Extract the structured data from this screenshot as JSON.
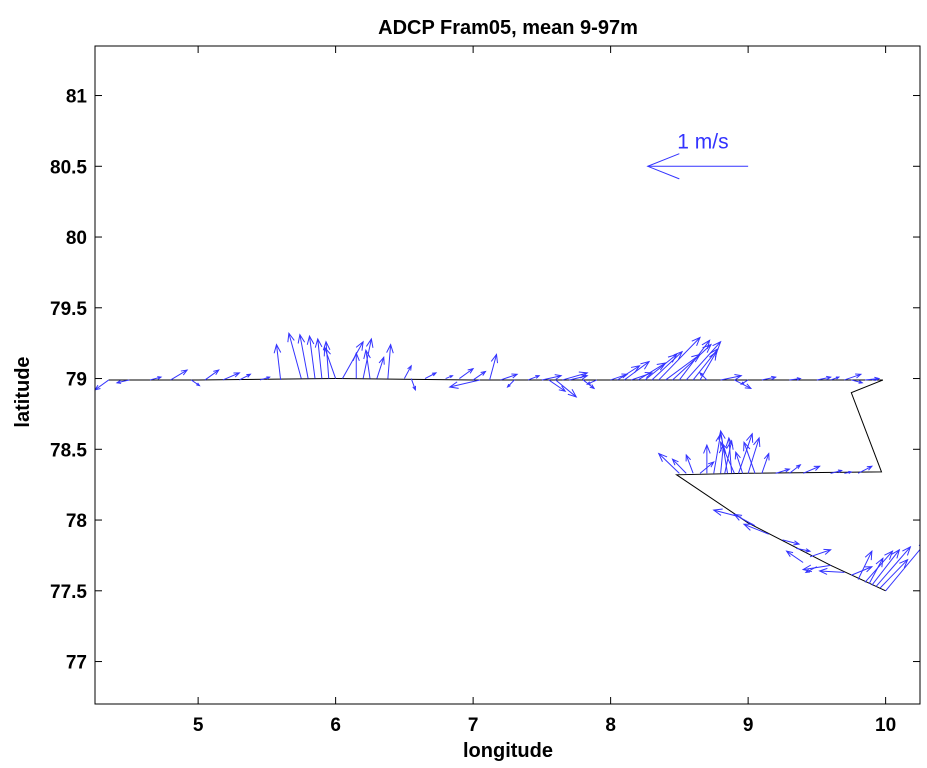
{
  "chart_data": {
    "type": "scatter",
    "title": "ADCP Fram05, mean 9-97m",
    "xlabel": "longitude",
    "ylabel": "latitude",
    "xlim": [
      4.25,
      10.25
    ],
    "ylim": [
      76.7,
      81.35
    ],
    "xticks": [
      5,
      6,
      7,
      8,
      9,
      10
    ],
    "yticks": [
      77,
      77.5,
      78,
      78.5,
      79,
      79.5,
      80,
      80.5,
      81
    ],
    "ytick_labels": [
      "77",
      "77.5",
      "78",
      "78.5",
      "79",
      "79.5",
      "80",
      "80.5",
      "81"
    ],
    "grid": false,
    "colors": {
      "vectors": "#3333ff",
      "track": "#000000",
      "axes": "#000000"
    },
    "scale_arrow": {
      "label": "1 m/s",
      "start": [
        9.0,
        80.5
      ],
      "end": [
        8.27,
        80.5
      ]
    },
    "ship_track": [
      [
        4.35,
        78.99
      ],
      [
        5.0,
        78.99
      ],
      [
        6.0,
        79.0
      ],
      [
        7.0,
        78.99
      ],
      [
        8.0,
        78.99
      ],
      [
        9.0,
        78.99
      ],
      [
        9.98,
        78.99
      ],
      [
        9.75,
        78.9
      ],
      [
        9.97,
        78.34
      ],
      [
        9.0,
        78.33
      ],
      [
        8.48,
        78.32
      ],
      [
        9.0,
        77.98
      ],
      [
        9.6,
        77.68
      ],
      [
        10.0,
        77.5
      ]
    ],
    "vectors": [
      {
        "lon": 4.35,
        "lat": 78.99,
        "dx": -0.1,
        "dy": -0.07
      },
      {
        "lon": 4.5,
        "lat": 78.99,
        "dx": -0.09,
        "dy": -0.02
      },
      {
        "lon": 4.65,
        "lat": 78.99,
        "dx": 0.08,
        "dy": 0.02
      },
      {
        "lon": 4.8,
        "lat": 78.99,
        "dx": 0.12,
        "dy": 0.07
      },
      {
        "lon": 4.95,
        "lat": 78.99,
        "dx": 0.06,
        "dy": -0.04
      },
      {
        "lon": 5.05,
        "lat": 78.99,
        "dx": 0.1,
        "dy": 0.07
      },
      {
        "lon": 5.18,
        "lat": 78.99,
        "dx": 0.12,
        "dy": 0.05
      },
      {
        "lon": 5.3,
        "lat": 78.99,
        "dx": 0.08,
        "dy": 0.04
      },
      {
        "lon": 5.45,
        "lat": 78.99,
        "dx": 0.07,
        "dy": 0.02
      },
      {
        "lon": 5.6,
        "lat": 78.99,
        "dx": -0.03,
        "dy": 0.25
      },
      {
        "lon": 5.75,
        "lat": 79.0,
        "dx": -0.09,
        "dy": 0.32
      },
      {
        "lon": 5.8,
        "lat": 79.0,
        "dx": -0.06,
        "dy": 0.31
      },
      {
        "lon": 5.85,
        "lat": 79.0,
        "dx": -0.04,
        "dy": 0.3
      },
      {
        "lon": 5.9,
        "lat": 79.0,
        "dx": -0.03,
        "dy": 0.28
      },
      {
        "lon": 5.95,
        "lat": 79.0,
        "dx": -0.02,
        "dy": 0.26
      },
      {
        "lon": 6.0,
        "lat": 79.0,
        "dx": -0.08,
        "dy": 0.22
      },
      {
        "lon": 6.05,
        "lat": 79.0,
        "dx": 0.15,
        "dy": 0.26
      },
      {
        "lon": 6.15,
        "lat": 79.0,
        "dx": 0.0,
        "dy": 0.18
      },
      {
        "lon": 6.2,
        "lat": 79.0,
        "dx": 0.06,
        "dy": 0.28
      },
      {
        "lon": 6.25,
        "lat": 79.0,
        "dx": -0.03,
        "dy": 0.2
      },
      {
        "lon": 6.3,
        "lat": 79.0,
        "dx": 0.05,
        "dy": 0.15
      },
      {
        "lon": 6.38,
        "lat": 79.0,
        "dx": 0.02,
        "dy": 0.24
      },
      {
        "lon": 6.5,
        "lat": 79.0,
        "dx": 0.05,
        "dy": 0.09
      },
      {
        "lon": 6.55,
        "lat": 79.0,
        "dx": 0.03,
        "dy": -0.08
      },
      {
        "lon": 6.65,
        "lat": 79.0,
        "dx": 0.08,
        "dy": 0.04
      },
      {
        "lon": 6.8,
        "lat": 79.0,
        "dx": 0.05,
        "dy": 0.02
      },
      {
        "lon": 6.9,
        "lat": 79.0,
        "dx": 0.1,
        "dy": 0.07
      },
      {
        "lon": 7.0,
        "lat": 78.99,
        "dx": 0.09,
        "dy": 0.06
      },
      {
        "lon": 7.05,
        "lat": 78.99,
        "dx": -0.22,
        "dy": -0.05
      },
      {
        "lon": 7.12,
        "lat": 78.99,
        "dx": 0.05,
        "dy": 0.18
      },
      {
        "lon": 7.2,
        "lat": 78.99,
        "dx": 0.12,
        "dy": 0.04
      },
      {
        "lon": 7.3,
        "lat": 78.99,
        "dx": -0.05,
        "dy": -0.05
      },
      {
        "lon": 7.4,
        "lat": 78.99,
        "dx": 0.08,
        "dy": 0.03
      },
      {
        "lon": 7.5,
        "lat": 78.99,
        "dx": 0.14,
        "dy": 0.03
      },
      {
        "lon": 7.55,
        "lat": 78.99,
        "dx": 0.12,
        "dy": -0.08
      },
      {
        "lon": 7.6,
        "lat": 78.99,
        "dx": 0.15,
        "dy": -0.12
      },
      {
        "lon": 7.65,
        "lat": 78.99,
        "dx": 0.18,
        "dy": 0.05
      },
      {
        "lon": 7.7,
        "lat": 78.99,
        "dx": 0.13,
        "dy": 0.03
      },
      {
        "lon": 7.8,
        "lat": 78.99,
        "dx": 0.08,
        "dy": -0.06
      },
      {
        "lon": 7.9,
        "lat": 78.99,
        "dx": -0.07,
        "dy": -0.03
      },
      {
        "lon": 8.0,
        "lat": 78.99,
        "dx": 0.12,
        "dy": 0.04
      },
      {
        "lon": 8.05,
        "lat": 78.99,
        "dx": 0.16,
        "dy": 0.1
      },
      {
        "lon": 8.1,
        "lat": 78.99,
        "dx": 0.18,
        "dy": 0.13
      },
      {
        "lon": 8.15,
        "lat": 78.99,
        "dx": 0.15,
        "dy": 0.05
      },
      {
        "lon": 8.2,
        "lat": 78.99,
        "dx": 0.2,
        "dy": 0.12
      },
      {
        "lon": 8.25,
        "lat": 78.99,
        "dx": 0.23,
        "dy": 0.18
      },
      {
        "lon": 8.3,
        "lat": 78.99,
        "dx": 0.22,
        "dy": 0.2
      },
      {
        "lon": 8.35,
        "lat": 78.99,
        "dx": 0.3,
        "dy": 0.3
      },
      {
        "lon": 8.4,
        "lat": 78.99,
        "dx": 0.25,
        "dy": 0.18
      },
      {
        "lon": 8.45,
        "lat": 78.99,
        "dx": 0.28,
        "dy": 0.25
      },
      {
        "lon": 8.5,
        "lat": 78.99,
        "dx": 0.22,
        "dy": 0.28
      },
      {
        "lon": 8.55,
        "lat": 78.99,
        "dx": 0.25,
        "dy": 0.27
      },
      {
        "lon": 8.6,
        "lat": 78.99,
        "dx": 0.18,
        "dy": 0.22
      },
      {
        "lon": 8.65,
        "lat": 78.99,
        "dx": 0.12,
        "dy": 0.2
      },
      {
        "lon": 8.7,
        "lat": 78.99,
        "dx": -0.05,
        "dy": 0.05
      },
      {
        "lon": 8.8,
        "lat": 78.99,
        "dx": 0.15,
        "dy": 0.03
      },
      {
        "lon": 8.9,
        "lat": 78.99,
        "dx": 0.12,
        "dy": -0.06
      },
      {
        "lon": 9.0,
        "lat": 78.99,
        "dx": -0.05,
        "dy": -0.03
      },
      {
        "lon": 9.1,
        "lat": 78.99,
        "dx": 0.1,
        "dy": 0.02
      },
      {
        "lon": 9.3,
        "lat": 78.99,
        "dx": 0.08,
        "dy": 0.01
      },
      {
        "lon": 9.5,
        "lat": 78.99,
        "dx": 0.1,
        "dy": 0.02
      },
      {
        "lon": 9.6,
        "lat": 78.99,
        "dx": 0.06,
        "dy": 0.02
      },
      {
        "lon": 9.7,
        "lat": 78.99,
        "dx": 0.12,
        "dy": 0.04
      },
      {
        "lon": 9.75,
        "lat": 78.99,
        "dx": 0.08,
        "dy": -0.02
      },
      {
        "lon": 9.85,
        "lat": 78.99,
        "dx": 0.1,
        "dy": 0.01
      },
      {
        "lon": 9.9,
        "lat": 78.99,
        "dx": 0.05,
        "dy": 0.01
      },
      {
        "lon": 8.5,
        "lat": 78.33,
        "dx": -0.15,
        "dy": 0.14
      },
      {
        "lon": 8.55,
        "lat": 78.33,
        "dx": -0.1,
        "dy": 0.1
      },
      {
        "lon": 8.6,
        "lat": 78.33,
        "dx": -0.05,
        "dy": 0.13
      },
      {
        "lon": 8.65,
        "lat": 78.33,
        "dx": 0.1,
        "dy": 0.08
      },
      {
        "lon": 8.7,
        "lat": 78.33,
        "dx": 0.0,
        "dy": 0.2
      },
      {
        "lon": 8.75,
        "lat": 78.33,
        "dx": 0.05,
        "dy": 0.28
      },
      {
        "lon": 8.8,
        "lat": 78.33,
        "dx": 0.02,
        "dy": 0.2
      },
      {
        "lon": 8.83,
        "lat": 78.33,
        "dx": 0.05,
        "dy": 0.23
      },
      {
        "lon": 8.85,
        "lat": 78.33,
        "dx": -0.05,
        "dy": 0.3
      },
      {
        "lon": 8.88,
        "lat": 78.33,
        "dx": -0.02,
        "dy": 0.25
      },
      {
        "lon": 8.9,
        "lat": 78.33,
        "dx": -0.1,
        "dy": 0.22
      },
      {
        "lon": 8.93,
        "lat": 78.33,
        "dx": 0.1,
        "dy": 0.28
      },
      {
        "lon": 8.96,
        "lat": 78.33,
        "dx": -0.05,
        "dy": 0.15
      },
      {
        "lon": 9.0,
        "lat": 78.33,
        "dx": 0.08,
        "dy": 0.25
      },
      {
        "lon": 9.05,
        "lat": 78.33,
        "dx": -0.08,
        "dy": 0.22
      },
      {
        "lon": 9.1,
        "lat": 78.33,
        "dx": 0.05,
        "dy": 0.14
      },
      {
        "lon": 9.2,
        "lat": 78.33,
        "dx": 0.1,
        "dy": 0.03
      },
      {
        "lon": 9.3,
        "lat": 78.33,
        "dx": 0.08,
        "dy": 0.06
      },
      {
        "lon": 9.4,
        "lat": 78.33,
        "dx": 0.12,
        "dy": 0.05
      },
      {
        "lon": 9.6,
        "lat": 78.33,
        "dx": 0.08,
        "dy": 0.02
      },
      {
        "lon": 9.7,
        "lat": 78.33,
        "dx": 0.05,
        "dy": 0.01
      },
      {
        "lon": 9.8,
        "lat": 78.33,
        "dx": 0.1,
        "dy": 0.05
      },
      {
        "lon": 8.95,
        "lat": 78.02,
        "dx": -0.2,
        "dy": 0.05
      },
      {
        "lon": 9.05,
        "lat": 77.96,
        "dx": -0.15,
        "dy": 0.08
      },
      {
        "lon": 9.15,
        "lat": 77.9,
        "dx": -0.18,
        "dy": 0.07
      },
      {
        "lon": 9.25,
        "lat": 77.86,
        "dx": 0.12,
        "dy": -0.03
      },
      {
        "lon": 9.35,
        "lat": 77.8,
        "dx": 0.1,
        "dy": -0.02
      },
      {
        "lon": 9.45,
        "lat": 77.74,
        "dx": 0.15,
        "dy": 0.05
      },
      {
        "lon": 9.5,
        "lat": 77.67,
        "dx": -0.08,
        "dy": -0.04
      },
      {
        "lon": 9.6,
        "lat": 77.68,
        "dx": -0.2,
        "dy": -0.03
      },
      {
        "lon": 9.7,
        "lat": 77.63,
        "dx": -0.18,
        "dy": 0.01
      },
      {
        "lon": 9.75,
        "lat": 77.61,
        "dx": 0.15,
        "dy": 0.06
      },
      {
        "lon": 9.8,
        "lat": 77.58,
        "dx": 0.1,
        "dy": 0.2
      },
      {
        "lon": 9.85,
        "lat": 77.56,
        "dx": 0.2,
        "dy": 0.22
      },
      {
        "lon": 9.88,
        "lat": 77.55,
        "dx": 0.1,
        "dy": 0.18
      },
      {
        "lon": 9.9,
        "lat": 77.54,
        "dx": 0.2,
        "dy": 0.25
      },
      {
        "lon": 9.93,
        "lat": 77.53,
        "dx": 0.25,
        "dy": 0.28
      },
      {
        "lon": 9.96,
        "lat": 77.52,
        "dx": 0.2,
        "dy": 0.2
      },
      {
        "lon": 10.0,
        "lat": 77.5,
        "dx": 0.3,
        "dy": 0.35
      },
      {
        "lon": 9.4,
        "lat": 77.7,
        "dx": -0.12,
        "dy": 0.08
      }
    ]
  }
}
